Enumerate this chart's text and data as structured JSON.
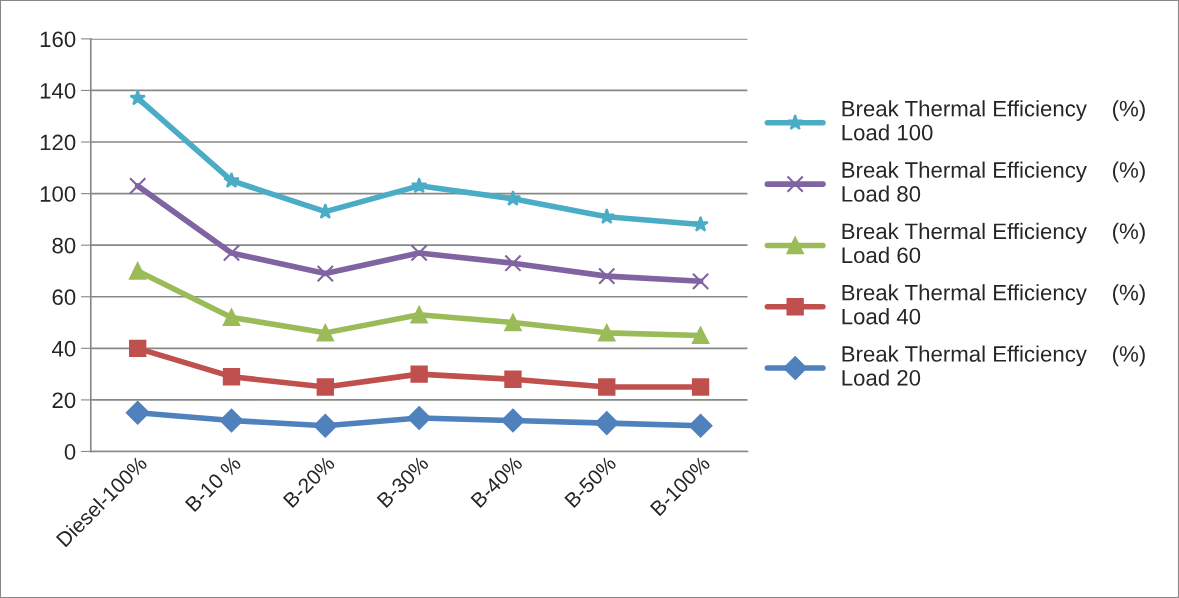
{
  "chart_data": {
    "type": "line",
    "categories": [
      "Diesel-100%",
      "B-10 %",
      "B-20%",
      "B-30%",
      "B-40%",
      "B-50%",
      "B-100%"
    ],
    "series": [
      {
        "name": "Break Thermal Efficiency    (%)\nLoad 100",
        "color": "#4bacc6",
        "marker": "star",
        "values": [
          137,
          105,
          93,
          103,
          98,
          91,
          88
        ]
      },
      {
        "name": "Break Thermal Efficiency    (%)\nLoad 80",
        "color": "#8064a2",
        "marker": "cross",
        "values": [
          103,
          77,
          69,
          77,
          73,
          68,
          66
        ]
      },
      {
        "name": "Break Thermal Efficiency    (%)\nLoad 60",
        "color": "#9bbb59",
        "marker": "triangle",
        "values": [
          70,
          52,
          46,
          53,
          50,
          46,
          45
        ]
      },
      {
        "name": "Break Thermal Efficiency    (%)\nLoad 40",
        "color": "#c0504d",
        "marker": "square",
        "values": [
          40,
          29,
          25,
          30,
          28,
          25,
          25
        ]
      },
      {
        "name": "Break Thermal Efficiency    (%)\nLoad 20",
        "color": "#4f81bd",
        "marker": "diamond",
        "values": [
          15,
          12,
          10,
          13,
          12,
          11,
          10
        ]
      }
    ],
    "ylim": [
      0,
      160
    ],
    "yticks": [
      0,
      20,
      40,
      60,
      80,
      100,
      120,
      140,
      160
    ],
    "grid": "y",
    "legend": "right",
    "line_style": "solid"
  }
}
